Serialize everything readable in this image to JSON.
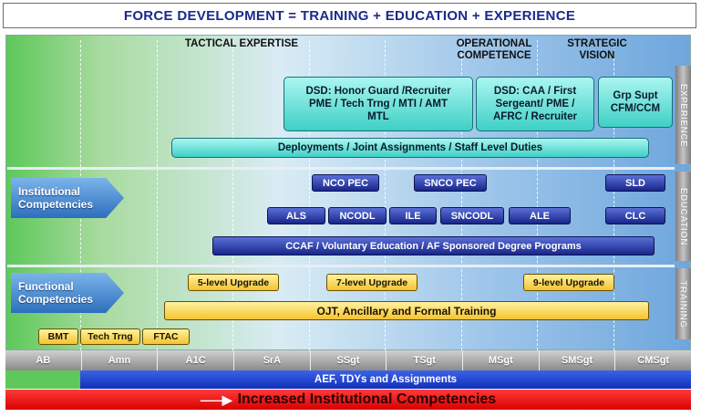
{
  "title": "FORCE DEVELOPMENT = TRAINING + EDUCATION + EXPERIENCE",
  "headers": {
    "tactical": "TACTICAL EXPERTISE",
    "operational_1": "OPERATIONAL",
    "operational_2": "COMPETENCE",
    "strategic_1": "STRATEGIC",
    "strategic_2": "VISION"
  },
  "side_labels": {
    "experience": "EXPERIENCE",
    "education": "EDUCATION",
    "training": "TRAINING"
  },
  "arrows": {
    "institutional_1": "Institutional",
    "institutional_2": "Competencies",
    "functional_1": "Functional",
    "functional_2": "Competencies"
  },
  "experience": {
    "dsd_1": {
      "l1": "DSD: Honor Guard /Recruiter",
      "l2": "PME / Tech Trng / MTI / AMT",
      "l3": "MTL"
    },
    "dsd_2": {
      "l1": "DSD: CAA / First",
      "l2": "Sergeant/ PME /",
      "l3": "AFRC / Recruiter"
    },
    "grp_supt": {
      "l1": "Grp Supt",
      "l2": "CFM/CCM"
    },
    "deployments": "Deployments / Joint Assignments / Staff Level Duties"
  },
  "education": {
    "nco_pec": "NCO PEC",
    "snco_pec": "SNCO PEC",
    "sld": "SLD",
    "als": "ALS",
    "ncodl": "NCODL",
    "ile": "ILE",
    "sncodl": "SNCODL",
    "ale": "ALE",
    "clc": "CLC",
    "ccaf": "CCAF / Voluntary Education / AF Sponsored Degree Programs"
  },
  "training": {
    "five_level": "5-level Upgrade",
    "seven_level": "7-level Upgrade",
    "nine_level": "9-level Upgrade",
    "ojt": "OJT, Ancillary and Formal Training",
    "bmt": "BMT",
    "tech_trng": "Tech Trng",
    "ftac": "FTAC"
  },
  "ranks": [
    "AB",
    "Amn",
    "A1C",
    "SrA",
    "SSgt",
    "TSgt",
    "MSgt",
    "SMSgt",
    "CMSgt"
  ],
  "aef": "AEF, TDYs and  Assignments",
  "increased": "Increased Institutional Competencies",
  "colors": {
    "title_text": "#1a2a8c",
    "teal_box": "#3fd0c6",
    "navy_box": "#18268a",
    "gold_box": "#f5c330",
    "red_bar": "#d80000",
    "aef_bar": "#1230b8"
  }
}
